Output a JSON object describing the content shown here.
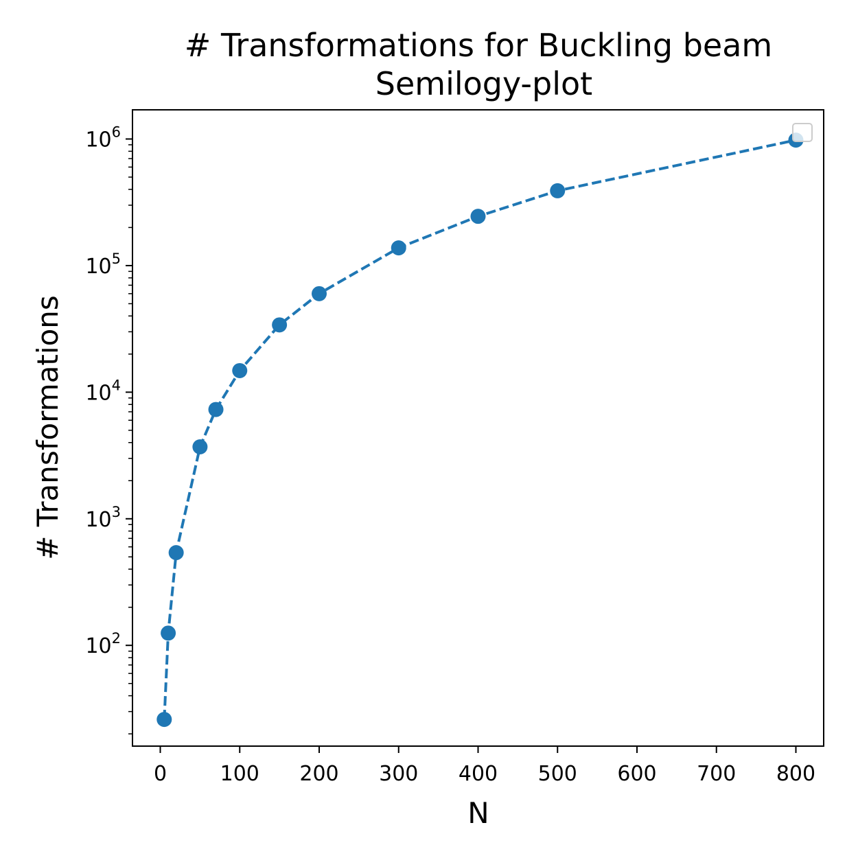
{
  "chart_data": {
    "type": "line",
    "title": "# Transformations for Buckling beam",
    "subtitle": "Semilogy-plot",
    "xlabel": "N",
    "ylabel": "# Transformations",
    "yscale": "log",
    "xlim": [
      -35,
      835
    ],
    "ylim": [
      16,
      1700000
    ],
    "xticks": [
      0,
      100,
      200,
      300,
      400,
      500,
      600,
      700,
      800
    ],
    "yticks": [
      {
        "value": 100,
        "base": "10",
        "exp": "2"
      },
      {
        "value": 1000,
        "base": "10",
        "exp": "3"
      },
      {
        "value": 10000,
        "base": "10",
        "exp": "4"
      },
      {
        "value": 100000,
        "base": "10",
        "exp": "5"
      },
      {
        "value": 1000000,
        "base": "10",
        "exp": "6"
      }
    ],
    "grid": false,
    "legend": "top-right (empty box)",
    "line_style": "dashed with circle markers",
    "color": "#1f77b4",
    "series": [
      {
        "x": [
          5,
          10,
          20,
          50,
          70,
          100,
          150,
          200,
          300,
          400,
          500,
          800
        ],
        "y": [
          26,
          125,
          540,
          3700,
          7300,
          14800,
          34000,
          60000,
          138000,
          245000,
          390000,
          980000
        ]
      }
    ]
  }
}
